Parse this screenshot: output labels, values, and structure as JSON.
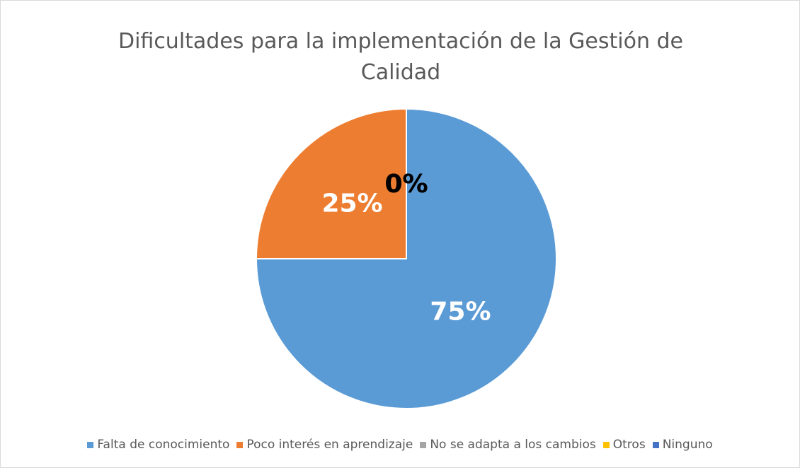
{
  "chart_data": {
    "type": "pie",
    "title": "Dificultades para la implementación de la Gestión de Calidad",
    "categories": [
      "Falta de conocimiento",
      "Poco interés en aprendizaje",
      "No se adapta a los cambios",
      "Otros",
      "Ninguno"
    ],
    "values": [
      75,
      25,
      0,
      0,
      0
    ],
    "value_labels": [
      "75%",
      "25%",
      "0%",
      "0%",
      "0%"
    ],
    "colors": [
      "#5b9bd5",
      "#ed7d31",
      "#a5a5a5",
      "#ffc000",
      "#4472c4"
    ],
    "legend": "bottom"
  }
}
